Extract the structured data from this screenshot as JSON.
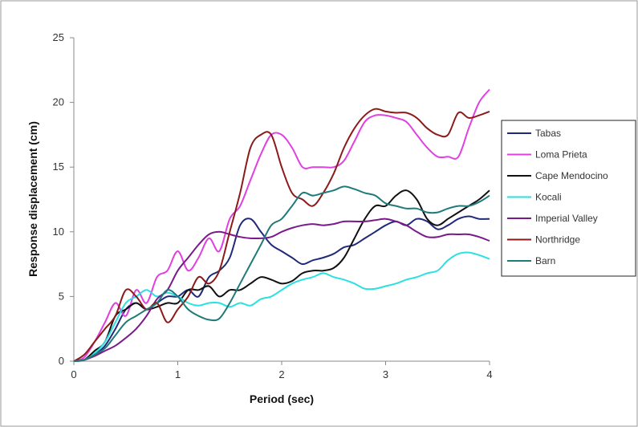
{
  "chart_data": {
    "type": "line",
    "title": "",
    "xlabel": "Period (sec)",
    "ylabel": "Response displacement  (cm)",
    "xlim": [
      0,
      4
    ],
    "ylim": [
      0,
      25
    ],
    "xticks": [
      0,
      1,
      2,
      3,
      4
    ],
    "yticks": [
      0,
      5,
      10,
      15,
      20,
      25
    ],
    "grid": false,
    "legend_position": "right",
    "series": [
      {
        "name": "Tabas",
        "color": "#1f2a7a",
        "x": [
          0,
          0.1,
          0.2,
          0.3,
          0.4,
          0.5,
          0.6,
          0.7,
          0.8,
          0.9,
          1.0,
          1.1,
          1.2,
          1.3,
          1.4,
          1.5,
          1.6,
          1.7,
          1.8,
          1.9,
          2.0,
          2.1,
          2.2,
          2.3,
          2.4,
          2.5,
          2.6,
          2.7,
          2.8,
          2.9,
          3.0,
          3.1,
          3.2,
          3.3,
          3.4,
          3.5,
          3.6,
          3.7,
          3.8,
          3.9,
          4.0
        ],
        "y": [
          0,
          0.1,
          0.5,
          1.2,
          2.5,
          4.0,
          4.5,
          4.0,
          4.5,
          5.0,
          5.0,
          5.5,
          5.0,
          6.5,
          7.0,
          8.0,
          10.5,
          11.0,
          10.0,
          9.0,
          8.5,
          8.0,
          7.5,
          7.8,
          8.0,
          8.3,
          8.8,
          9.0,
          9.5,
          10.0,
          10.5,
          10.8,
          10.5,
          11.0,
          10.8,
          10.2,
          10.5,
          11.0,
          11.2,
          11.0,
          11.0
        ]
      },
      {
        "name": "Loma Prieta",
        "color": "#e040e0",
        "x": [
          0,
          0.1,
          0.2,
          0.3,
          0.4,
          0.5,
          0.6,
          0.7,
          0.8,
          0.9,
          1.0,
          1.1,
          1.2,
          1.3,
          1.4,
          1.5,
          1.6,
          1.7,
          1.8,
          1.9,
          2.0,
          2.1,
          2.2,
          2.3,
          2.4,
          2.5,
          2.6,
          2.7,
          2.8,
          2.9,
          3.0,
          3.1,
          3.2,
          3.3,
          3.4,
          3.5,
          3.6,
          3.7,
          3.8,
          3.9,
          4.0
        ],
        "y": [
          0,
          0.3,
          1.5,
          3.0,
          4.5,
          3.5,
          5.5,
          4.5,
          6.5,
          7.0,
          8.5,
          7.0,
          8.0,
          9.5,
          8.5,
          11.0,
          12.0,
          14.0,
          16.0,
          17.5,
          17.5,
          16.5,
          15.0,
          15.0,
          15.0,
          15.0,
          15.5,
          17.0,
          18.5,
          19.0,
          19.0,
          18.8,
          18.5,
          17.5,
          16.5,
          15.8,
          15.8,
          15.8,
          18.0,
          20.0,
          21.0
        ]
      },
      {
        "name": "Cape Mendocino",
        "color": "#111111",
        "x": [
          0,
          0.1,
          0.2,
          0.3,
          0.4,
          0.5,
          0.6,
          0.7,
          0.8,
          0.9,
          1.0,
          1.1,
          1.2,
          1.3,
          1.4,
          1.5,
          1.6,
          1.7,
          1.8,
          1.9,
          2.0,
          2.1,
          2.2,
          2.3,
          2.4,
          2.5,
          2.6,
          2.7,
          2.8,
          2.9,
          3.0,
          3.1,
          3.2,
          3.3,
          3.4,
          3.5,
          3.6,
          3.7,
          3.8,
          3.9,
          4.0
        ],
        "y": [
          0,
          0.1,
          0.8,
          1.5,
          3.5,
          4.0,
          4.5,
          4.0,
          4.2,
          4.5,
          4.5,
          5.5,
          5.5,
          5.8,
          5.0,
          5.5,
          5.5,
          6.0,
          6.5,
          6.3,
          6.0,
          6.2,
          6.8,
          7.0,
          7.0,
          7.2,
          8.0,
          9.5,
          11.0,
          12.0,
          12.0,
          12.8,
          13.2,
          12.5,
          11.0,
          10.5,
          11.0,
          11.5,
          12.0,
          12.5,
          13.2
        ]
      },
      {
        "name": "Kocali",
        "color": "#2ae0e0",
        "x": [
          0,
          0.1,
          0.2,
          0.3,
          0.4,
          0.5,
          0.6,
          0.7,
          0.8,
          0.9,
          1.0,
          1.1,
          1.2,
          1.3,
          1.4,
          1.5,
          1.6,
          1.7,
          1.8,
          1.9,
          2.0,
          2.1,
          2.2,
          2.3,
          2.4,
          2.5,
          2.6,
          2.7,
          2.8,
          2.9,
          3.0,
          3.1,
          3.2,
          3.3,
          3.4,
          3.5,
          3.6,
          3.7,
          3.8,
          3.9,
          4.0
        ],
        "y": [
          0,
          0.1,
          0.6,
          1.5,
          3.0,
          4.5,
          5.0,
          5.5,
          5.0,
          5.3,
          5.0,
          4.5,
          4.3,
          4.5,
          4.5,
          4.2,
          4.5,
          4.3,
          4.8,
          5.0,
          5.5,
          6.0,
          6.3,
          6.5,
          6.8,
          6.5,
          6.3,
          6.0,
          5.6,
          5.6,
          5.8,
          6.0,
          6.3,
          6.5,
          6.8,
          7.0,
          7.8,
          8.3,
          8.4,
          8.2,
          7.9
        ]
      },
      {
        "name": "Imperial Valley",
        "color": "#7a1a8a",
        "x": [
          0,
          0.1,
          0.2,
          0.3,
          0.4,
          0.5,
          0.6,
          0.7,
          0.8,
          0.9,
          1.0,
          1.1,
          1.2,
          1.3,
          1.4,
          1.5,
          1.6,
          1.7,
          1.8,
          1.9,
          2.0,
          2.1,
          2.2,
          2.3,
          2.4,
          2.5,
          2.6,
          2.7,
          2.8,
          2.9,
          3.0,
          3.1,
          3.2,
          3.3,
          3.4,
          3.5,
          3.6,
          3.7,
          3.8,
          3.9,
          4.0
        ],
        "y": [
          0,
          0.1,
          0.4,
          0.8,
          1.2,
          1.8,
          2.5,
          3.5,
          4.8,
          5.5,
          7.0,
          8.0,
          9.0,
          9.8,
          10.0,
          9.8,
          9.6,
          9.5,
          9.5,
          9.6,
          10.0,
          10.3,
          10.5,
          10.6,
          10.5,
          10.6,
          10.8,
          10.8,
          10.8,
          10.9,
          11.0,
          10.8,
          10.5,
          10.0,
          9.6,
          9.6,
          9.8,
          9.8,
          9.8,
          9.6,
          9.3
        ]
      },
      {
        "name": "Northridge",
        "color": "#8b1a1a",
        "x": [
          0,
          0.1,
          0.2,
          0.3,
          0.4,
          0.5,
          0.6,
          0.7,
          0.8,
          0.9,
          1.0,
          1.1,
          1.2,
          1.3,
          1.4,
          1.5,
          1.6,
          1.7,
          1.8,
          1.9,
          2.0,
          2.1,
          2.2,
          2.3,
          2.4,
          2.5,
          2.6,
          2.7,
          2.8,
          2.9,
          3.0,
          3.1,
          3.2,
          3.3,
          3.4,
          3.5,
          3.6,
          3.7,
          3.8,
          3.9,
          4.0
        ],
        "y": [
          0,
          0.5,
          1.5,
          2.5,
          3.5,
          5.5,
          5.0,
          4.0,
          4.5,
          3.0,
          4.0,
          5.0,
          6.5,
          6.0,
          7.0,
          10.0,
          13.0,
          16.5,
          17.5,
          17.5,
          15.0,
          13.0,
          12.5,
          12.0,
          13.0,
          14.5,
          16.5,
          18.0,
          19.0,
          19.5,
          19.3,
          19.2,
          19.2,
          18.8,
          18.0,
          17.5,
          17.5,
          19.2,
          18.8,
          19.0,
          19.3
        ]
      },
      {
        "name": "Barn",
        "color": "#1f7a7a",
        "x": [
          0,
          0.1,
          0.2,
          0.3,
          0.4,
          0.5,
          0.6,
          0.7,
          0.8,
          0.9,
          1.0,
          1.1,
          1.2,
          1.3,
          1.4,
          1.5,
          1.6,
          1.7,
          1.8,
          1.9,
          2.0,
          2.1,
          2.2,
          2.3,
          2.4,
          2.5,
          2.6,
          2.7,
          2.8,
          2.9,
          3.0,
          3.1,
          3.2,
          3.3,
          3.4,
          3.5,
          3.6,
          3.7,
          3.8,
          3.9,
          4.0
        ],
        "y": [
          0,
          0.1,
          0.5,
          1.0,
          2.0,
          3.0,
          3.5,
          4.0,
          4.5,
          5.5,
          5.0,
          4.0,
          3.5,
          3.2,
          3.3,
          4.5,
          6.0,
          7.5,
          9.0,
          10.5,
          11.0,
          12.0,
          13.0,
          12.8,
          13.0,
          13.2,
          13.5,
          13.3,
          13.0,
          12.8,
          12.2,
          12.0,
          11.8,
          11.8,
          11.5,
          11.5,
          11.8,
          12.0,
          12.0,
          12.3,
          12.8
        ]
      }
    ]
  }
}
